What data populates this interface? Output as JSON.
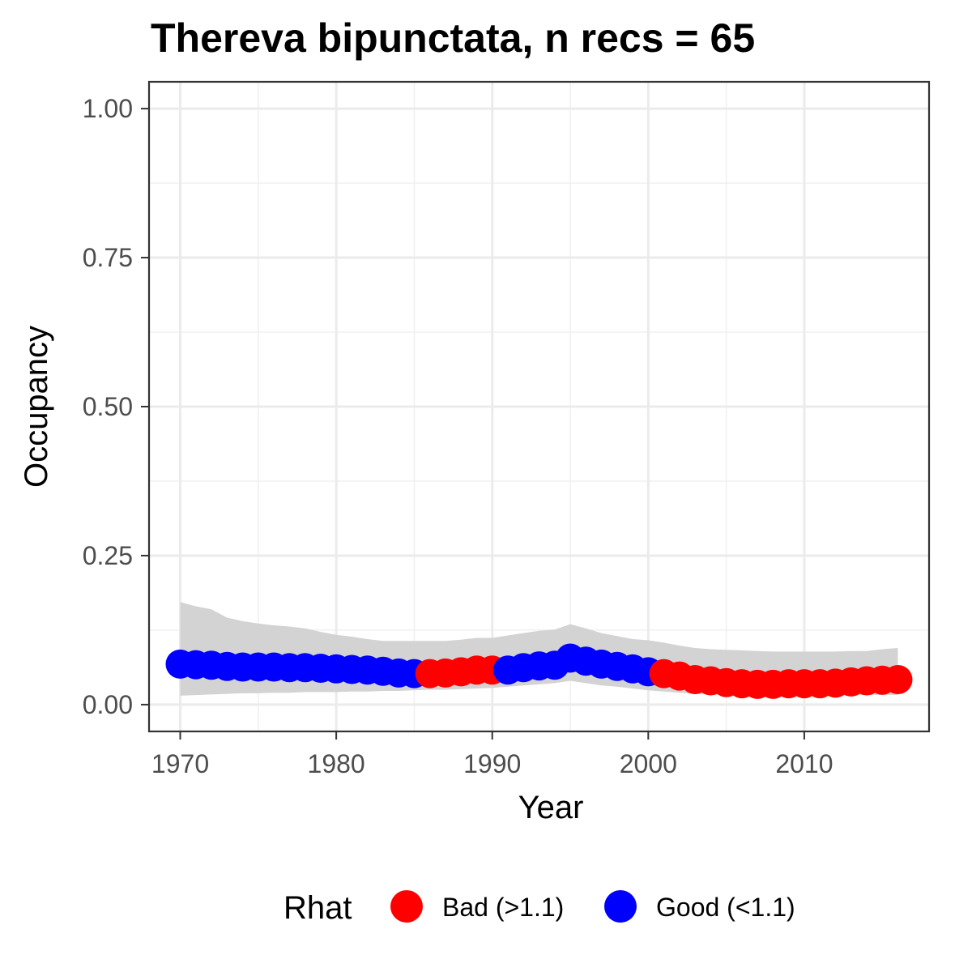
{
  "chart_data": {
    "type": "line",
    "title": "Thereva bipunctata, n recs = 65",
    "xlabel": "Year",
    "ylabel": "Occupancy",
    "xlim": [
      1968,
      2018
    ],
    "ylim": [
      -0.045,
      1.045
    ],
    "x_ticks": [
      1970,
      1980,
      1990,
      2000,
      2010
    ],
    "y_ticks": [
      0.0,
      0.25,
      0.5,
      0.75,
      1.0
    ],
    "y_tick_labels": [
      "0.00",
      "0.25",
      "0.50",
      "0.75",
      "1.00"
    ],
    "grid": true,
    "legend": {
      "title": "Rhat",
      "position": "bottom",
      "entries": [
        {
          "label": "Bad (>1.1)",
          "color": "#ff0000"
        },
        {
          "label": "Good (<1.1)",
          "color": "#0000ff"
        }
      ]
    },
    "colors": {
      "Bad": "#ff0000",
      "Good": "#0000ff",
      "ribbon": "#d3d3d3"
    },
    "years": [
      1970,
      1971,
      1972,
      1973,
      1974,
      1975,
      1976,
      1977,
      1978,
      1979,
      1980,
      1981,
      1982,
      1983,
      1984,
      1985,
      1986,
      1987,
      1988,
      1989,
      1990,
      1991,
      1992,
      1993,
      1994,
      1995,
      1996,
      1997,
      1998,
      1999,
      2000,
      2001,
      2002,
      2003,
      2004,
      2005,
      2006,
      2007,
      2008,
      2009,
      2010,
      2011,
      2012,
      2013,
      2014,
      2015,
      2016
    ],
    "mean": [
      0.068,
      0.067,
      0.066,
      0.064,
      0.063,
      0.063,
      0.063,
      0.062,
      0.062,
      0.061,
      0.06,
      0.059,
      0.058,
      0.056,
      0.053,
      0.052,
      0.052,
      0.053,
      0.055,
      0.058,
      0.058,
      0.058,
      0.062,
      0.065,
      0.066,
      0.078,
      0.073,
      0.068,
      0.064,
      0.06,
      0.055,
      0.052,
      0.048,
      0.042,
      0.04,
      0.037,
      0.035,
      0.034,
      0.034,
      0.035,
      0.035,
      0.035,
      0.036,
      0.038,
      0.04,
      0.041,
      0.042
    ],
    "rhat": [
      "Good",
      "Good",
      "Good",
      "Good",
      "Good",
      "Good",
      "Good",
      "Good",
      "Good",
      "Good",
      "Good",
      "Good",
      "Good",
      "Good",
      "Good",
      "Good",
      "Bad",
      "Bad",
      "Bad",
      "Bad",
      "Bad",
      "Good",
      "Good",
      "Good",
      "Good",
      "Good",
      "Good",
      "Good",
      "Good",
      "Good",
      "Good",
      "Bad",
      "Bad",
      "Bad",
      "Bad",
      "Bad",
      "Bad",
      "Bad",
      "Bad",
      "Bad",
      "Bad",
      "Bad",
      "Bad",
      "Bad",
      "Bad",
      "Bad",
      "Bad"
    ],
    "lower": [
      0.015,
      0.016,
      0.017,
      0.018,
      0.019,
      0.019,
      0.02,
      0.02,
      0.021,
      0.021,
      0.021,
      0.022,
      0.022,
      0.023,
      0.023,
      0.024,
      0.025,
      0.025,
      0.026,
      0.027,
      0.028,
      0.03,
      0.032,
      0.034,
      0.036,
      0.04,
      0.036,
      0.032,
      0.03,
      0.027,
      0.024,
      0.022,
      0.02,
      0.018,
      0.017,
      0.016,
      0.016,
      0.015,
      0.015,
      0.015,
      0.015,
      0.015,
      0.015,
      0.016,
      0.016,
      0.016,
      0.016
    ],
    "upper": [
      0.172,
      0.165,
      0.16,
      0.146,
      0.14,
      0.136,
      0.133,
      0.131,
      0.128,
      0.122,
      0.117,
      0.114,
      0.11,
      0.107,
      0.107,
      0.107,
      0.107,
      0.107,
      0.109,
      0.112,
      0.112,
      0.116,
      0.12,
      0.124,
      0.126,
      0.135,
      0.128,
      0.12,
      0.115,
      0.11,
      0.108,
      0.104,
      0.099,
      0.095,
      0.093,
      0.092,
      0.091,
      0.09,
      0.089,
      0.089,
      0.089,
      0.089,
      0.089,
      0.09,
      0.09,
      0.093,
      0.095
    ]
  }
}
